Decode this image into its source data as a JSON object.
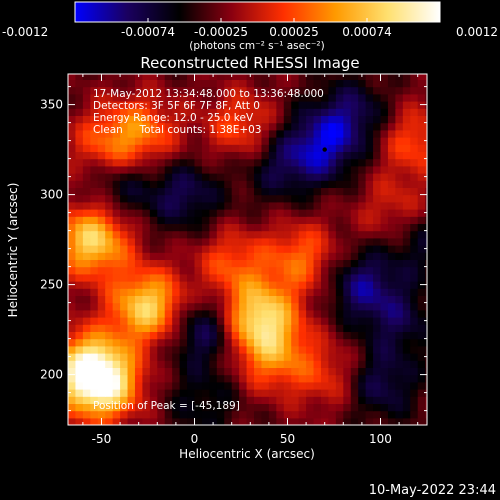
{
  "chart_data": {
    "type": "heatmap",
    "title": "Reconstructed RHESSI Image",
    "xlabel": "Heliocentric X (arcsec)",
    "ylabel": "Heliocentric Y (arcsec)",
    "xlim": [
      -68,
      125
    ],
    "ylim": [
      172,
      367
    ],
    "xticks": [
      -50,
      0,
      50,
      100
    ],
    "yticks": [
      200,
      250,
      300,
      350
    ],
    "colorbar": {
      "range": [
        -0.0012,
        0.0012
      ],
      "ticks": [
        "-0.0012",
        "-0.00074",
        "-0.00025",
        "0.00025",
        "0.00074",
        "0.0012"
      ],
      "unit_label": "(photons cm⁻² s⁻¹ asec⁻²)",
      "colormap": [
        "#0000ff",
        "#1a0060",
        "#000000",
        "#8a0010",
        "#ff3000",
        "#ff9a00",
        "#ffe070",
        "#ffffff"
      ]
    },
    "annotations": {
      "time_range": "17-May-2012 13:34:48.000 to 13:36:48.000",
      "detectors": "Detectors: 3F 5F 6F 7F 8F, Att 0",
      "energy_range": "Energy Range: 12.0 - 25.0 keV",
      "clean_counts": "Clean     Total counts: 1.38E+03",
      "peak_position": "Position of Peak = [-45,189]"
    },
    "peak": {
      "x": -45,
      "y": 189
    },
    "marker": {
      "x": 70,
      "y": 325
    },
    "bright_sources": [
      {
        "x": -50,
        "y": 195,
        "value": 0.0012
      },
      {
        "x": -25,
        "y": 238,
        "value": 0.0011
      },
      {
        "x": -55,
        "y": 275,
        "value": 0.0011
      },
      {
        "x": 35,
        "y": 232,
        "value": 0.0011
      },
      {
        "x": 42,
        "y": 210,
        "value": 0.0006
      },
      {
        "x": -28,
        "y": 335,
        "value": 0.0006
      },
      {
        "x": 25,
        "y": 338,
        "value": 0.0005
      },
      {
        "x": 58,
        "y": 265,
        "value": 0.0006
      },
      {
        "x": -48,
        "y": 328,
        "value": 0.0005
      },
      {
        "x": 20,
        "y": 262,
        "value": 0.0005
      },
      {
        "x": 72,
        "y": 200,
        "value": 0.0004
      },
      {
        "x": 118,
        "y": 330,
        "value": 0.0005
      },
      {
        "x": 108,
        "y": 290,
        "value": 0.0004
      },
      {
        "x": -58,
        "y": 205,
        "value": 0.0009
      }
    ],
    "dark_sources": [
      {
        "x": 68,
        "y": 327,
        "value": -0.0007
      },
      {
        "x": 85,
        "y": 345,
        "value": -0.0005
      },
      {
        "x": 5,
        "y": 225,
        "value": -0.0006
      },
      {
        "x": 90,
        "y": 250,
        "value": -0.0006
      },
      {
        "x": -5,
        "y": 300,
        "value": -0.0005
      },
      {
        "x": 100,
        "y": 195,
        "value": -0.0005
      },
      {
        "x": 110,
        "y": 230,
        "value": -0.0004
      },
      {
        "x": -40,
        "y": 305,
        "value": -0.0004
      },
      {
        "x": 120,
        "y": 275,
        "value": -0.0004
      },
      {
        "x": 5,
        "y": 185,
        "value": -0.0003
      },
      {
        "x": 45,
        "y": 315,
        "value": -0.0004
      }
    ]
  },
  "footer": {
    "date": "10-May-2022 23:44"
  }
}
